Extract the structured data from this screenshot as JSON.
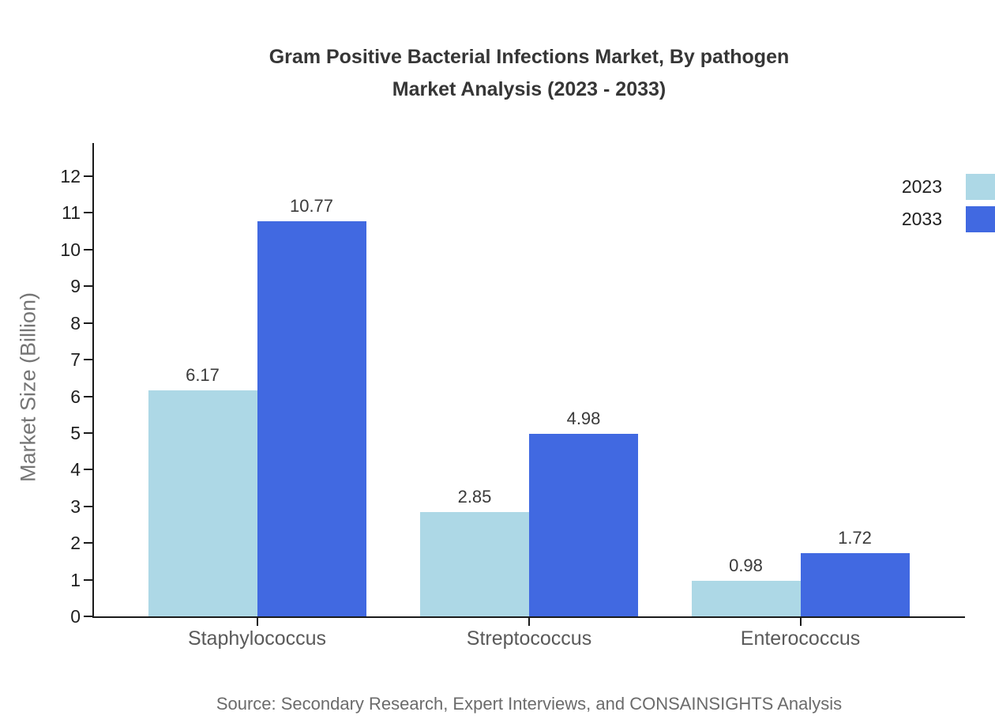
{
  "title": {
    "line1": "Gram Positive Bacterial Infections Market, By pathogen",
    "line2": "Market Analysis (2023 - 2033)"
  },
  "source": "Source: Secondary Research, Expert Interviews, and CONSAINSIGHTS Analysis",
  "colors": {
    "series_2023": "#ADD8E6",
    "series_2033": "#4169E1",
    "axis": "#1a1a1a",
    "tick_label": "#1f1f1f",
    "category_label": "#5a5a5a",
    "value_label": "#3a3a3a",
    "y_axis_label": "#757575",
    "title": "#363636",
    "source_text": "#6b6b6b",
    "background": "#ffffff"
  },
  "chart_data": {
    "type": "bar",
    "title": "Gram Positive Bacterial Infections Market, By pathogen Market Analysis (2023 - 2033)",
    "categories": [
      "Staphylococcus",
      "Streptococcus",
      "Enterococcus"
    ],
    "series": [
      {
        "name": "2023",
        "color": "#ADD8E6",
        "values": [
          6.17,
          2.85,
          0.98
        ]
      },
      {
        "name": "2033",
        "color": "#4169E1",
        "values": [
          10.77,
          4.98,
          1.72
        ]
      }
    ],
    "value_labels": [
      "6.17",
      "10.77",
      "2.85",
      "4.98",
      "0.98",
      "1.72"
    ],
    "xlabel": "",
    "ylabel": "Market Size (Billion)",
    "ylim": [
      0,
      12.9
    ],
    "yticks": [
      0,
      1,
      2,
      3,
      4,
      5,
      6,
      7,
      8,
      9,
      10,
      11,
      12
    ],
    "grid": false,
    "legend_position": "top-right outside plot, swatches clipped at right edge",
    "legend_entries": [
      "2023",
      "2033"
    ]
  }
}
